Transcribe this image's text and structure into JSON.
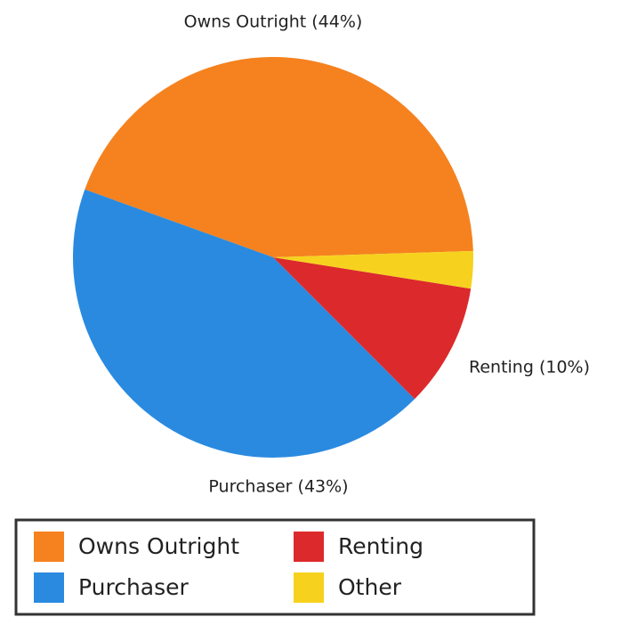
{
  "chart_data": {
    "type": "pie",
    "categories": [
      "Owns Outright",
      "Purchaser",
      "Renting",
      "Other"
    ],
    "values": [
      44,
      43,
      10,
      3
    ],
    "value_labels": [
      "Owns Outright (44%)",
      "Purchaser (43%)",
      "Renting (10%)",
      null
    ],
    "colors": [
      "#f5821f",
      "#2a8ae0",
      "#dc2a2c",
      "#f6d21e"
    ],
    "legend": "bottom"
  }
}
